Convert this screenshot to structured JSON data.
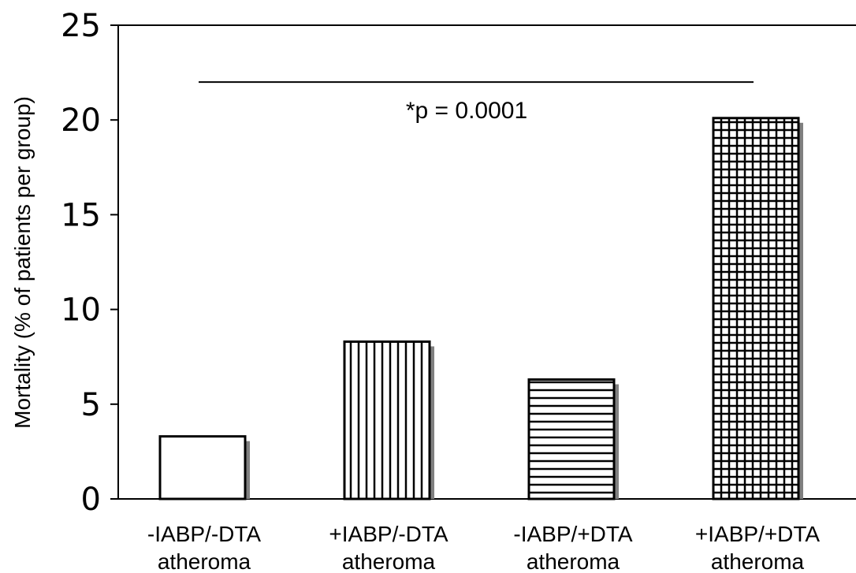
{
  "chart_data": {
    "type": "bar",
    "categories": [
      [
        "-IABP/-DTA",
        "atheroma"
      ],
      [
        "+IABP/-DTA",
        "atheroma"
      ],
      [
        "-IABP/+DTA",
        "atheroma"
      ],
      [
        "+IABP/+DTA",
        "atheroma"
      ]
    ],
    "values": [
      3.3,
      8.3,
      6.3,
      20.1
    ],
    "patterns": [
      "none",
      "vertical",
      "horizontal",
      "grid"
    ],
    "ylabel": "Mortality (% of patients per group)",
    "ylim": [
      0,
      25
    ],
    "yticks": [
      "0",
      "5",
      "10",
      "15",
      "20",
      "25"
    ],
    "grid": false,
    "annotation": {
      "text": "*p = 0.0001",
      "y_value": 22
    },
    "colors": {
      "bar_fill": "#ffffff",
      "bar_stroke": "#000000",
      "shadow": "#808080"
    }
  }
}
